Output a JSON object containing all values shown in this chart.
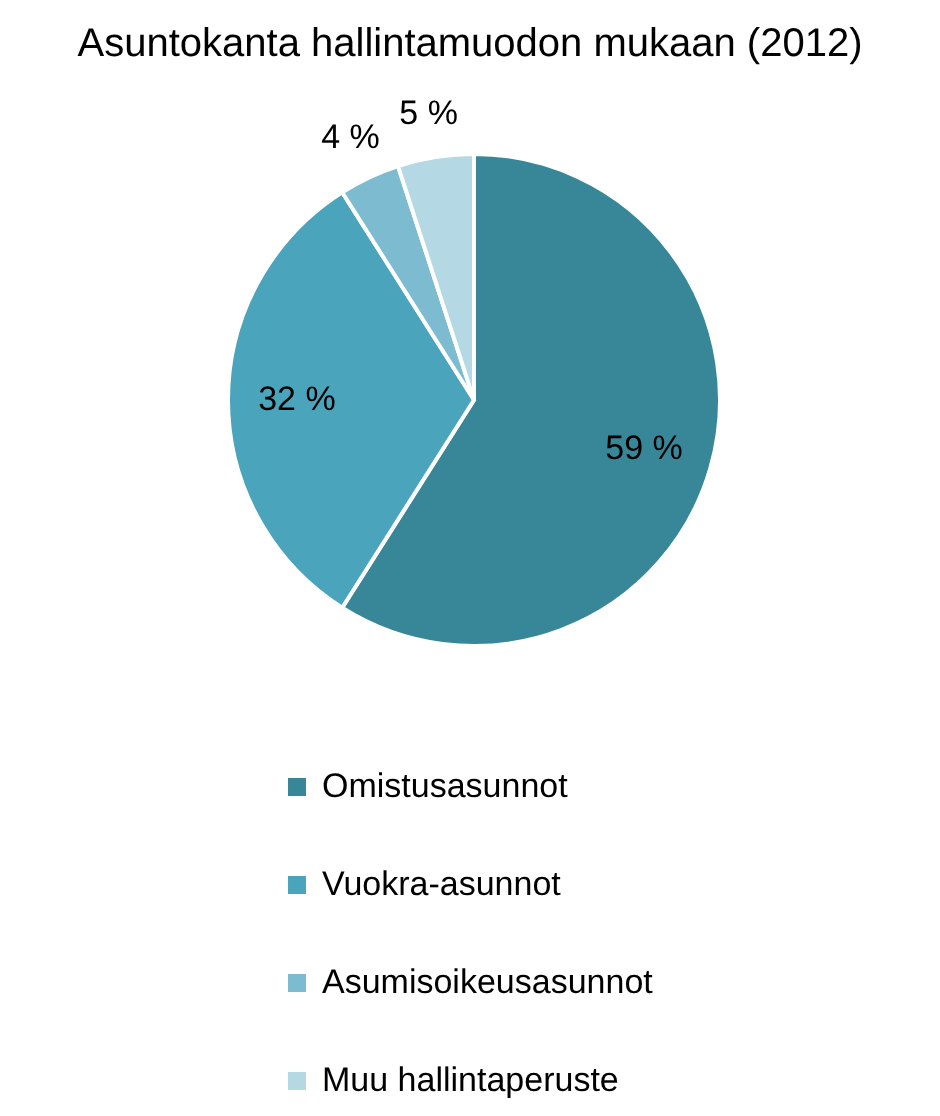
{
  "chart_data": {
    "type": "pie",
    "title": "Asuntokanta hallintamuodon mukaan (2012)",
    "categories": [
      "Omistusasunnot",
      "Vuokra-asunnot",
      "Asumisoikeusasunnot",
      "Muu hallintaperuste"
    ],
    "values": [
      59,
      32,
      4,
      5
    ],
    "colors": [
      "#378799",
      "#49a4bc",
      "#7dbbd0",
      "#b5d9e4"
    ],
    "value_labels": [
      "59 %",
      "32 %",
      "4 %",
      "5 %"
    ],
    "legend": "bottom"
  }
}
